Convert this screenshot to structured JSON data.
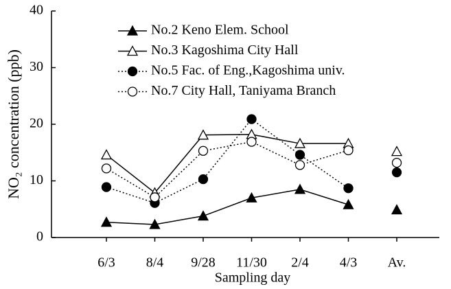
{
  "chart_data": {
    "type": "line",
    "y_label": "NO₂ concentration (ppb)",
    "x_label": "Sampling day",
    "categories": [
      "6/3",
      "8/4",
      "9/28",
      "11/30",
      "2/4",
      "4/3"
    ],
    "average_category": "Av.",
    "ylim": [
      0,
      40
    ],
    "yticks": [
      0,
      10,
      20,
      30,
      40
    ],
    "legend": "upper-left",
    "series": [
      {
        "name": "No.2 Keno Elem. School",
        "color": "#000000",
        "marker": "triangle",
        "filled": true,
        "line_style": "solid",
        "values": [
          2.7,
          2.3,
          3.8,
          7.0,
          8.5,
          5.8
        ],
        "average": 4.9
      },
      {
        "name": "No.3 Kagoshima City Hall",
        "color": "#000000",
        "marker": "triangle",
        "filled": false,
        "line_style": "solid",
        "values": [
          14.6,
          7.9,
          18.1,
          18.2,
          16.6,
          16.6
        ],
        "average": 15.2
      },
      {
        "name": "No.5 Fac. of Eng.,Kagoshima univ.",
        "color": "#000000",
        "marker": "circle",
        "filled": true,
        "line_style": "dotted",
        "values": [
          8.9,
          6.1,
          10.3,
          20.9,
          14.6,
          8.7
        ],
        "average": 11.5
      },
      {
        "name": "No.7 City Hall, Taniyama Branch",
        "color": "#000000",
        "marker": "circle",
        "filled": false,
        "line_style": "dotted",
        "values": [
          12.2,
          7.1,
          15.3,
          16.9,
          12.8,
          15.4
        ],
        "average": 13.2
      }
    ]
  }
}
